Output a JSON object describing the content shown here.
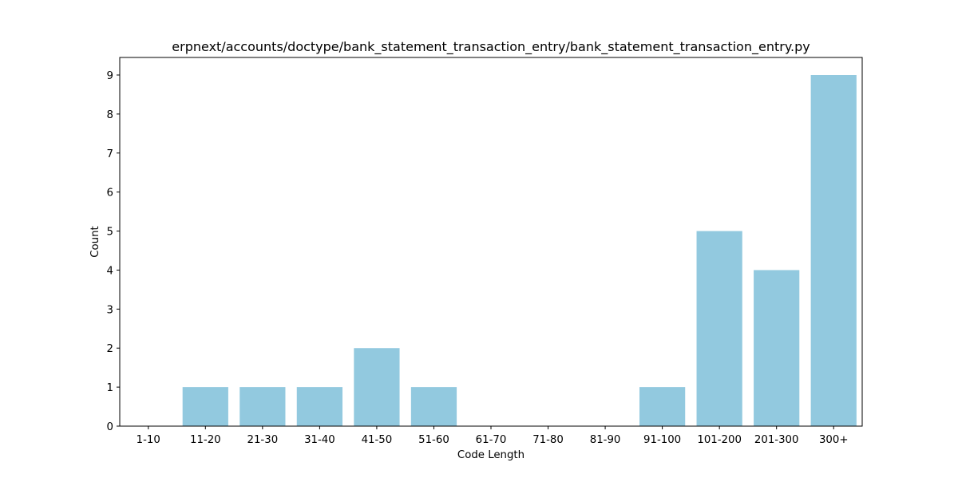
{
  "chart_data": {
    "type": "bar",
    "title": "erpnext/accounts/doctype/bank_statement_transaction_entry/bank_statement_transaction_entry.py",
    "xlabel": "Code Length",
    "ylabel": "Count",
    "categories": [
      "1-10",
      "11-20",
      "21-30",
      "31-40",
      "41-50",
      "51-60",
      "61-70",
      "71-80",
      "81-90",
      "91-100",
      "101-200",
      "201-300",
      "300+"
    ],
    "values": [
      0,
      1,
      1,
      1,
      2,
      1,
      0,
      0,
      0,
      1,
      5,
      4,
      9
    ],
    "ylim": [
      0,
      9.45
    ],
    "yticks": [
      0,
      1,
      2,
      3,
      4,
      5,
      6,
      7,
      8,
      9
    ],
    "bar_color": "#92c9df",
    "grid": false,
    "legend": "none"
  }
}
